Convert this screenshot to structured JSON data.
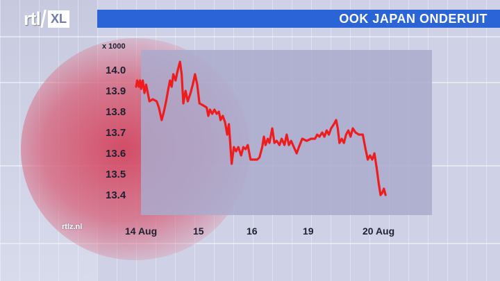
{
  "header": {
    "logo_text": "rtl",
    "logo_badge": "XL",
    "title": "OOK JAPAN ONDERUIT"
  },
  "source": "rtlz.nl",
  "colors": {
    "title_bar": "#2b64d6",
    "line": "#ee1c1c",
    "plot_background": "#aaaacd"
  },
  "chart_data": {
    "type": "line",
    "title": "OOK JAPAN ONDERUIT",
    "unit_label": "x 1000",
    "xlabel": "",
    "ylabel": "",
    "ylim": [
      13.33,
      14.12
    ],
    "yticks": [
      14.0,
      13.9,
      13.8,
      13.7,
      13.6,
      13.5,
      13.4
    ],
    "ytick_labels": [
      "14.0",
      "13.9",
      "13.8",
      "13.7",
      "13.6",
      "13.5",
      "13.4"
    ],
    "xticks": [
      {
        "label": "14 Aug",
        "pos": 0.0
      },
      {
        "label": "15",
        "pos": 1.0
      },
      {
        "label": "16",
        "pos": 2.0
      },
      {
        "label": "19",
        "pos": 3.0
      },
      {
        "label": "20 Aug",
        "pos": 4.0
      }
    ],
    "grid": false,
    "series": [
      {
        "values": [
          [
            -0.05,
            13.92
          ],
          [
            -0.03,
            13.95
          ],
          [
            0.0,
            13.92
          ],
          [
            0.02,
            13.95
          ],
          [
            0.04,
            13.91
          ],
          [
            0.07,
            13.95
          ],
          [
            0.1,
            13.89
          ],
          [
            0.13,
            13.93
          ],
          [
            0.16,
            13.89
          ],
          [
            0.19,
            13.85
          ],
          [
            0.25,
            13.86
          ],
          [
            0.32,
            13.85
          ],
          [
            0.36,
            13.82
          ],
          [
            0.41,
            13.76
          ],
          [
            0.45,
            13.8
          ],
          [
            0.49,
            13.85
          ],
          [
            0.53,
            13.91
          ],
          [
            0.56,
            13.95
          ],
          [
            0.59,
            13.92
          ],
          [
            0.62,
            13.98
          ],
          [
            0.66,
            13.95
          ],
          [
            0.7,
            14.0
          ],
          [
            0.74,
            14.04
          ],
          [
            0.77,
            13.98
          ],
          [
            0.8,
            13.84
          ],
          [
            0.84,
            13.9
          ],
          [
            0.88,
            13.85
          ],
          [
            0.93,
            13.89
          ],
          [
            0.97,
            13.93
          ],
          [
            1.01,
            13.98
          ],
          [
            1.05,
            13.93
          ],
          [
            1.09,
            13.84
          ],
          [
            1.16,
            13.83
          ],
          [
            1.22,
            13.82
          ],
          [
            1.25,
            13.78
          ],
          [
            1.28,
            13.81
          ],
          [
            1.32,
            13.79
          ],
          [
            1.36,
            13.81
          ],
          [
            1.4,
            13.79
          ],
          [
            1.44,
            13.8
          ],
          [
            1.47,
            13.76
          ],
          [
            1.51,
            13.78
          ],
          [
            1.55,
            13.75
          ],
          [
            1.59,
            13.69
          ],
          [
            1.62,
            13.74
          ],
          [
            1.67,
            13.55
          ],
          [
            1.71,
            13.63
          ],
          [
            1.75,
            13.61
          ],
          [
            1.79,
            13.63
          ],
          [
            1.84,
            13.59
          ],
          [
            1.88,
            13.63
          ],
          [
            1.92,
            13.62
          ],
          [
            1.96,
            13.64
          ],
          [
            2.01,
            13.57
          ],
          [
            2.07,
            13.57
          ],
          [
            2.13,
            13.57
          ],
          [
            2.17,
            13.58
          ],
          [
            2.22,
            13.63
          ],
          [
            2.25,
            13.68
          ],
          [
            2.28,
            13.64
          ],
          [
            2.32,
            13.67
          ],
          [
            2.35,
            13.65
          ],
          [
            2.4,
            13.72
          ],
          [
            2.44,
            13.65
          ],
          [
            2.48,
            13.66
          ],
          [
            2.53,
            13.64
          ],
          [
            2.57,
            13.67
          ],
          [
            2.62,
            13.64
          ],
          [
            2.66,
            13.69
          ],
          [
            2.7,
            13.64
          ],
          [
            2.74,
            13.66
          ],
          [
            2.79,
            13.63
          ],
          [
            2.84,
            13.6
          ],
          [
            2.88,
            13.63
          ],
          [
            2.94,
            13.67
          ],
          [
            3.02,
            13.66
          ],
          [
            3.1,
            13.67
          ],
          [
            3.17,
            13.67
          ],
          [
            3.21,
            13.69
          ],
          [
            3.25,
            13.68
          ],
          [
            3.3,
            13.7
          ],
          [
            3.34,
            13.68
          ],
          [
            3.38,
            13.71
          ],
          [
            3.42,
            13.69
          ],
          [
            3.46,
            13.72
          ],
          [
            3.51,
            13.74
          ],
          [
            3.55,
            13.76
          ],
          [
            3.58,
            13.72
          ],
          [
            3.61,
            13.65
          ],
          [
            3.65,
            13.67
          ],
          [
            3.69,
            13.65
          ],
          [
            3.73,
            13.69
          ],
          [
            3.77,
            13.71
          ],
          [
            3.81,
            13.68
          ],
          [
            3.85,
            13.72
          ],
          [
            3.9,
            13.7
          ],
          [
            3.96,
            13.69
          ],
          [
            4.03,
            13.69
          ],
          [
            4.08,
            13.62
          ],
          [
            4.12,
            13.57
          ],
          [
            4.16,
            13.59
          ],
          [
            4.2,
            13.57
          ],
          [
            4.24,
            13.6
          ],
          [
            4.28,
            13.53
          ],
          [
            4.32,
            13.45
          ],
          [
            4.35,
            13.4
          ],
          [
            4.38,
            13.41
          ],
          [
            4.41,
            13.43
          ],
          [
            4.44,
            13.4
          ]
        ]
      }
    ]
  }
}
